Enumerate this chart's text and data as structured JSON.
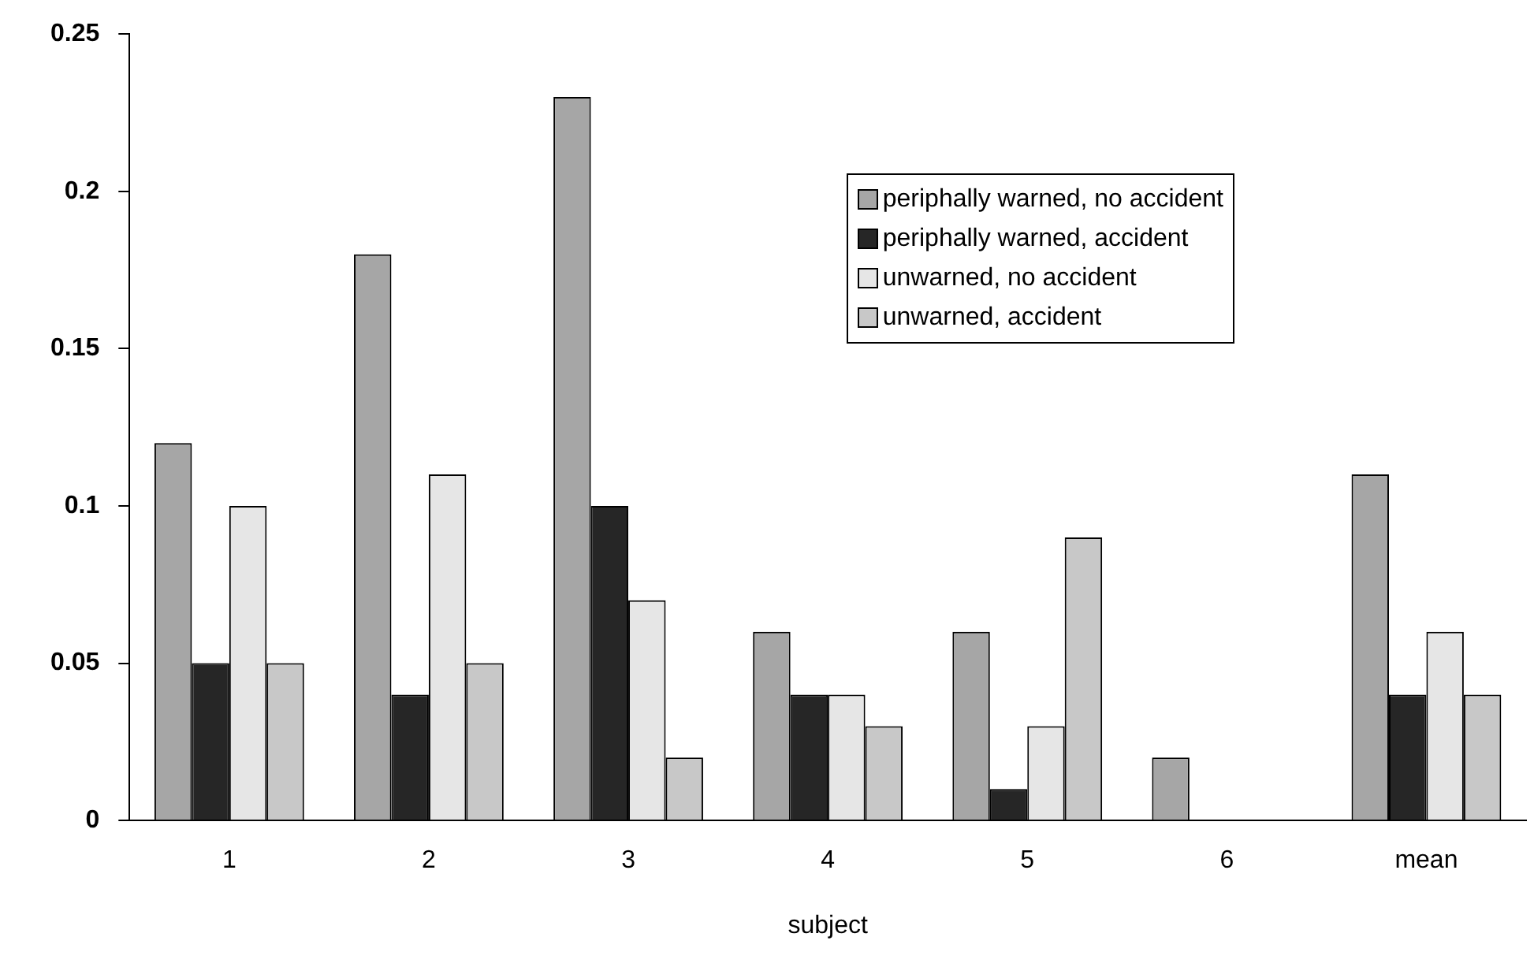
{
  "chart_data": {
    "type": "bar",
    "xlabel": "subject",
    "categories": [
      "1",
      "2",
      "3",
      "4",
      "5",
      "6",
      "mean"
    ],
    "series": [
      {
        "name": "periphally warned, no accident",
        "color": "#a6a6a6",
        "values": [
          0.12,
          0.18,
          0.23,
          0.06,
          0.06,
          0.02,
          0.11
        ]
      },
      {
        "name": "periphally warned, accident",
        "color": "#262626",
        "values": [
          0.05,
          0.04,
          0.1,
          0.04,
          0.01,
          0,
          0.04
        ]
      },
      {
        "name": "unwarned, no accident",
        "color": "#e6e6e6",
        "values": [
          0.1,
          0.11,
          0.07,
          0.04,
          0.03,
          0,
          0.06
        ]
      },
      {
        "name": "unwarned, accident",
        "color": "#c8c8c8",
        "values": [
          0.05,
          0.05,
          0.02,
          0.03,
          0.09,
          0,
          0.04
        ]
      }
    ],
    "ylim": [
      0,
      0.25
    ],
    "yticks": [
      0,
      0.05,
      0.1,
      0.15,
      0.2,
      0.25
    ],
    "grid": false,
    "legend": "top right"
  }
}
